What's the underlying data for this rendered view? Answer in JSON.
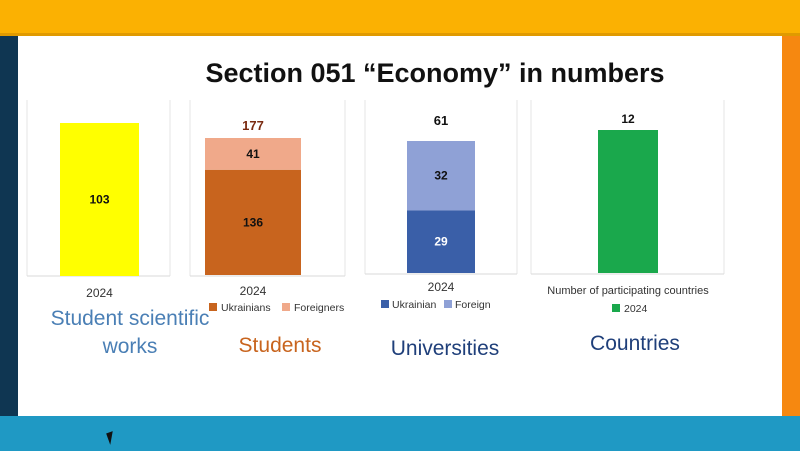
{
  "title": "Section 051 “Economy” in numbers",
  "panels": [
    {
      "label": "Student scientific works",
      "label_color": "#4a7fb5"
    },
    {
      "label": "Students",
      "label_color": "#c8641e"
    },
    {
      "label": "Universities",
      "label_color": "#1f3f7a"
    },
    {
      "label": "Countries",
      "label_color": "#1f3f7a"
    }
  ],
  "chart_data": [
    {
      "type": "bar",
      "categories": [
        "2024"
      ],
      "series": [
        {
          "values": [
            103
          ],
          "color": "#ffff00"
        }
      ]
    },
    {
      "type": "bar",
      "stacked": true,
      "categories": [
        "2024"
      ],
      "total_label": "177",
      "series": [
        {
          "name": "Ukrainians",
          "values": [
            136
          ],
          "color": "#c8641e"
        },
        {
          "name": "Foreigners",
          "values": [
            41
          ],
          "color": "#f0a98a"
        }
      ],
      "legend": "bottom"
    },
    {
      "type": "bar",
      "stacked": true,
      "categories": [
        "2024"
      ],
      "total_label": "61",
      "series": [
        {
          "name": "Ukrainian",
          "values": [
            29
          ],
          "color": "#3a5fa8"
        },
        {
          "name": "Foreign",
          "values": [
            32
          ],
          "color": "#8fa1d6"
        }
      ],
      "legend": "bottom"
    },
    {
      "type": "bar",
      "categories": [
        "Number of participating countries"
      ],
      "series": [
        {
          "name": "2024",
          "values": [
            12
          ],
          "color": "#1aa84c"
        }
      ],
      "legend": "bottom"
    }
  ]
}
